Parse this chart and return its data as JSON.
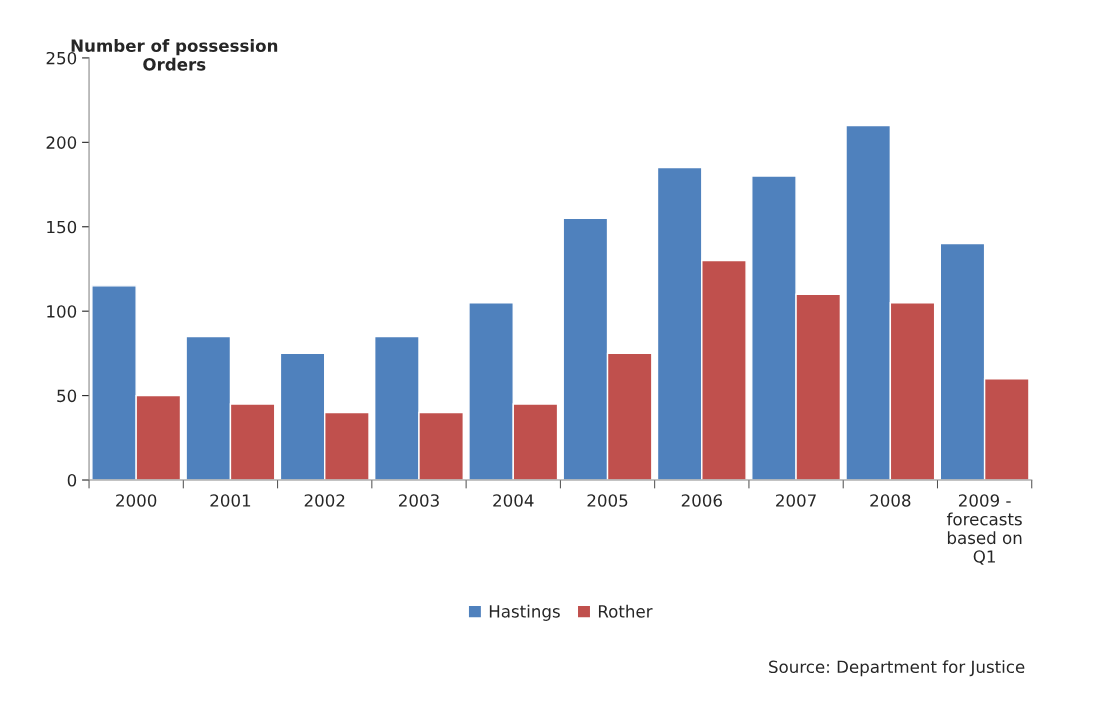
{
  "chart_data": {
    "type": "bar",
    "ylabel": "Number of possession\nOrders",
    "categories": [
      "2000",
      "2001",
      "2002",
      "2003",
      "2004",
      "2005",
      "2006",
      "2007",
      "2008",
      "2009 -\nforecasts\nbased on\nQ1"
    ],
    "series": [
      {
        "name": "Hastings",
        "color": "#4f81bd",
        "values": [
          115,
          85,
          75,
          85,
          105,
          155,
          185,
          180,
          210,
          140
        ]
      },
      {
        "name": "Rother",
        "color": "#c0504d",
        "values": [
          50,
          45,
          40,
          40,
          45,
          75,
          130,
          110,
          105,
          60
        ]
      }
    ],
    "ylim": [
      0,
      250
    ],
    "yticks": [
      0,
      50,
      100,
      150,
      200,
      250
    ],
    "grid": false,
    "legend": "bottom",
    "annotations": [
      "Source: Department for Justice"
    ]
  }
}
